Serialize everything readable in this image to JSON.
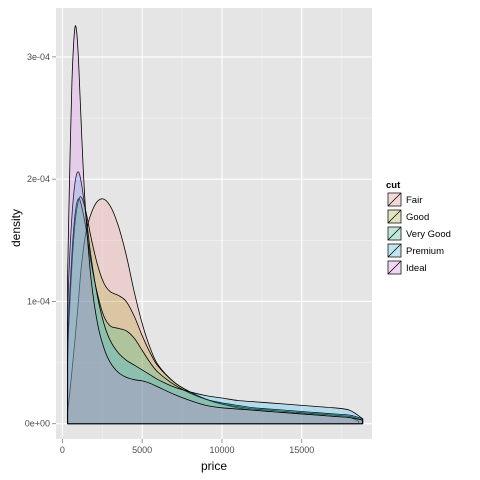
{
  "chart_data": {
    "type": "area",
    "title": "",
    "xlabel": "price",
    "ylabel": "density",
    "xlim": [
      -400,
      19400
    ],
    "ylim": [
      -1.25e-05,
      0.00034
    ],
    "x_ticks": [
      0,
      5000,
      10000,
      15000
    ],
    "x_tick_labels": [
      "0",
      "5000",
      "10000",
      "15000"
    ],
    "y_ticks": [
      0,
      0.0001,
      0.0002,
      0.0003
    ],
    "y_tick_labels": [
      "0e+00",
      "1e-04",
      "2e-04",
      "3e-04"
    ],
    "grid": true,
    "legend": {
      "title": "cut",
      "position": "right"
    },
    "series": [
      {
        "name": "Fair",
        "color": "#F8766D",
        "x": [
          337,
          500,
          800,
          1000,
          1200,
          1500,
          2000,
          2500,
          3000,
          3500,
          4000,
          4500,
          5000,
          5500,
          6000,
          7000,
          8000,
          9000,
          10000,
          11000,
          12000,
          13000,
          14000,
          15000,
          16000,
          17000,
          18000,
          18574
        ],
        "values": [
          1e-05,
          3e-05,
          7e-05,
          0.0001,
          0.00013,
          0.000158,
          0.000178,
          0.000184,
          0.000178,
          0.000162,
          0.000138,
          0.000108,
          8.2e-05,
          6.2e-05,
          4.8e-05,
          3.4e-05,
          2.6e-05,
          2e-05,
          1.6e-05,
          1.3e-05,
          1.1e-05,
          1e-05,
          9e-06,
          8e-06,
          7e-06,
          6e-06,
          5e-06,
          2e-06
        ]
      },
      {
        "name": "Good",
        "color": "#A3A500",
        "x": [
          327,
          400,
          600,
          800,
          1000,
          1200,
          1500,
          1800,
          2200,
          2600,
          3000,
          3500,
          4000,
          4500,
          5000,
          5500,
          6000,
          7000,
          8000,
          9000,
          10000,
          11000,
          12000,
          13000,
          14000,
          15000,
          16000,
          17000,
          18000,
          18788
        ],
        "values": [
          5e-05,
          8e-05,
          0.00013,
          0.000165,
          0.000182,
          0.000185,
          0.000172,
          0.000152,
          0.00013,
          0.000115,
          0.000108,
          0.000105,
          0.0001,
          8.8e-05,
          7.2e-05,
          5.8e-05,
          4.7e-05,
          3.4e-05,
          2.6e-05,
          2e-05,
          1.6e-05,
          1.4e-05,
          1.2e-05,
          1.1e-05,
          1e-05,
          9e-06,
          8e-06,
          7e-06,
          6e-06,
          3e-06
        ]
      },
      {
        "name": "Very Good",
        "color": "#00BF7D",
        "x": [
          336,
          400,
          600,
          800,
          1000,
          1200,
          1500,
          1800,
          2200,
          2600,
          3000,
          3500,
          4000,
          4500,
          5000,
          5500,
          6000,
          7000,
          8000,
          9000,
          10000,
          11000,
          12000,
          13000,
          14000,
          15000,
          16000,
          17000,
          18000,
          18818
        ],
        "values": [
          6e-05,
          9e-05,
          0.00014,
          0.000172,
          0.000184,
          0.000178,
          0.000158,
          0.000132,
          0.000106,
          8.8e-05,
          8e-05,
          7.8e-05,
          7.6e-05,
          7e-05,
          6e-05,
          5e-05,
          4.2e-05,
          3.2e-05,
          2.5e-05,
          2e-05,
          1.7e-05,
          1.5e-05,
          1.3e-05,
          1.2e-05,
          1.1e-05,
          1e-05,
          9e-06,
          8e-06,
          7e-06,
          4e-06
        ]
      },
      {
        "name": "Premium",
        "color": "#00B0F6",
        "x": [
          326,
          400,
          600,
          800,
          1000,
          1200,
          1500,
          1800,
          2200,
          2600,
          3000,
          3500,
          4000,
          4500,
          5000,
          5500,
          6000,
          7000,
          8000,
          9000,
          10000,
          11000,
          12000,
          13000,
          14000,
          15000,
          16000,
          17000,
          18000,
          18823
        ],
        "values": [
          8e-05,
          0.00012,
          0.00017,
          0.000198,
          0.000206,
          0.000196,
          0.000168,
          0.000136,
          0.000104,
          8.2e-05,
          6.8e-05,
          5.8e-05,
          5.2e-05,
          4.8e-05,
          4.4e-05,
          4e-05,
          3.6e-05,
          3e-05,
          2.6e-05,
          2.3e-05,
          2.1e-05,
          1.9e-05,
          1.8e-05,
          1.7e-05,
          1.6e-05,
          1.5e-05,
          1.4e-05,
          1.3e-05,
          1.1e-05,
          4e-06
        ]
      },
      {
        "name": "Ideal",
        "color": "#E76BF3",
        "x": [
          326,
          400,
          500,
          600,
          700,
          800,
          900,
          1000,
          1100,
          1300,
          1500,
          1800,
          2200,
          2600,
          3000,
          3500,
          4000,
          4500,
          5000,
          5500,
          6000,
          7000,
          8000,
          9000,
          10000,
          11000,
          12000,
          13000,
          14000,
          15000,
          16000,
          17000,
          18000,
          18806
        ],
        "values": [
          0.00012,
          0.00017,
          0.00023,
          0.00028,
          0.00031,
          0.000325,
          0.00032,
          0.0003,
          0.00027,
          0.00021,
          0.000165,
          0.000118,
          8.2e-05,
          6.2e-05,
          5e-05,
          4.2e-05,
          3.8e-05,
          3.6e-05,
          3.5e-05,
          3.3e-05,
          3e-05,
          2.4e-05,
          1.9e-05,
          1.5e-05,
          1.3e-05,
          1.2e-05,
          1.1e-05,
          1e-05,
          9e-06,
          8e-06,
          7e-06,
          6e-06,
          5e-06,
          3e-06
        ]
      }
    ]
  }
}
